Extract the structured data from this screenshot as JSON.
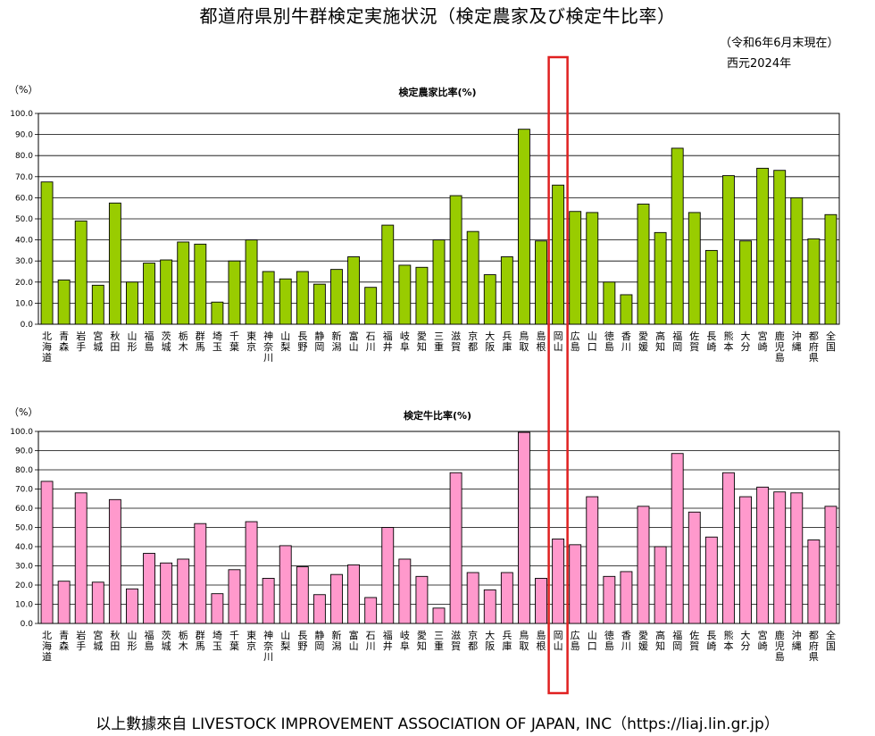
{
  "header": {
    "title": "都道府県別牛群検定実施状況（検定農家及び検定牛比率）",
    "date_note": "（令和6年6月末現在）",
    "year_note": "西元2024年"
  },
  "footer": {
    "source": "以上數據來自 LIVESTOCK IMPROVEMENT ASSOCIATION OF JAPAN, INC（https://liaj.lin.gr.jp）"
  },
  "colors": {
    "farm_bar": "#99cc00",
    "cow_bar": "#ff99cc",
    "bar_stroke": "#000000",
    "highlight_box": "#e02020"
  },
  "highlight": {
    "category_index": 30
  },
  "chart_data": [
    {
      "type": "bar",
      "title": "検定農家比率(%)",
      "unit_label": "（%）",
      "ylim": [
        0,
        100
      ],
      "yticks": [
        "0.0",
        "10.0",
        "20.0",
        "30.0",
        "40.0",
        "50.0",
        "60.0",
        "70.0",
        "80.0",
        "90.0",
        "100.0"
      ],
      "grid": true,
      "categories": [
        "北海道",
        "青森",
        "岩手",
        "宮城",
        "秋田",
        "山形",
        "福島",
        "茨城",
        "栃木",
        "群馬",
        "埼玉",
        "千葉",
        "東京",
        "神奈川",
        "山梨",
        "長野",
        "静岡",
        "新潟",
        "富山",
        "石川",
        "福井",
        "岐阜",
        "愛知",
        "三重",
        "滋賀",
        "京都",
        "大阪",
        "兵庫",
        "鳥取",
        "島根",
        "岡山",
        "広島",
        "山口",
        "徳島",
        "香川",
        "愛媛",
        "高知",
        "福岡",
        "佐賀",
        "長崎",
        "熊本",
        "大分",
        "宮崎",
        "鹿児島",
        "沖縄",
        "都府県",
        "全国"
      ],
      "category_lines": [
        [
          "北",
          "海",
          "道"
        ],
        [
          "青",
          "森"
        ],
        [
          "岩",
          "手"
        ],
        [
          "宮",
          "城"
        ],
        [
          "秋",
          "田"
        ],
        [
          "山",
          "形"
        ],
        [
          "福",
          "島"
        ],
        [
          "茨",
          "城"
        ],
        [
          "栃",
          "木"
        ],
        [
          "群",
          "馬"
        ],
        [
          "埼",
          "玉"
        ],
        [
          "千",
          "葉"
        ],
        [
          "東",
          "京"
        ],
        [
          "神",
          "奈",
          "川"
        ],
        [
          "山",
          "梨"
        ],
        [
          "長",
          "野"
        ],
        [
          "静",
          "岡"
        ],
        [
          "新",
          "潟"
        ],
        [
          "富",
          "山"
        ],
        [
          "石",
          "川"
        ],
        [
          "福",
          "井"
        ],
        [
          "岐",
          "阜"
        ],
        [
          "愛",
          "知"
        ],
        [
          "三",
          "重"
        ],
        [
          "滋",
          "賀"
        ],
        [
          "京",
          "都"
        ],
        [
          "大",
          "阪"
        ],
        [
          "兵",
          "庫"
        ],
        [
          "鳥",
          "取"
        ],
        [
          "島",
          "根"
        ],
        [
          "岡",
          "山"
        ],
        [
          "広",
          "島"
        ],
        [
          "山",
          "口"
        ],
        [
          "徳",
          "島"
        ],
        [
          "香",
          "川"
        ],
        [
          "愛",
          "媛"
        ],
        [
          "高",
          "知"
        ],
        [
          "福",
          "岡"
        ],
        [
          "佐",
          "賀"
        ],
        [
          "長",
          "崎"
        ],
        [
          "熊",
          "本"
        ],
        [
          "大",
          "分"
        ],
        [
          "宮",
          "崎"
        ],
        [
          "鹿",
          "児",
          "島"
        ],
        [
          "沖",
          "縄"
        ],
        [
          "都",
          "府",
          "県"
        ],
        [
          "全",
          "国"
        ]
      ],
      "values": [
        67.5,
        21.0,
        49.0,
        18.5,
        57.5,
        20.0,
        29.0,
        30.5,
        39.0,
        38.0,
        10.5,
        30.0,
        40.0,
        25.0,
        21.5,
        25.0,
        19.0,
        26.0,
        32.0,
        17.5,
        47.0,
        28.0,
        27.0,
        40.0,
        61.0,
        44.0,
        23.5,
        32.0,
        92.5,
        39.5,
        66.0,
        53.5,
        53.0,
        20.0,
        14.0,
        57.0,
        43.5,
        83.5,
        53.0,
        35.0,
        70.5,
        39.5,
        74.0,
        73.0,
        60.0,
        40.5,
        52.0
      ]
    },
    {
      "type": "bar",
      "title": "検定牛比率(%)",
      "unit_label": "（%）",
      "ylim": [
        0,
        100
      ],
      "yticks": [
        "0.0",
        "10.0",
        "20.0",
        "30.0",
        "40.0",
        "50.0",
        "60.0",
        "70.0",
        "80.0",
        "90.0",
        "100.0"
      ],
      "grid": true,
      "categories": [
        "北海道",
        "青森",
        "岩手",
        "宮城",
        "秋田",
        "山形",
        "福島",
        "茨城",
        "栃木",
        "群馬",
        "埼玉",
        "千葉",
        "東京",
        "神奈川",
        "山梨",
        "長野",
        "静岡",
        "新潟",
        "富山",
        "石川",
        "福井",
        "岐阜",
        "愛知",
        "三重",
        "滋賀",
        "京都",
        "大阪",
        "兵庫",
        "鳥取",
        "島根",
        "岡山",
        "広島",
        "山口",
        "徳島",
        "香川",
        "愛媛",
        "高知",
        "福岡",
        "佐賀",
        "長崎",
        "熊本",
        "大分",
        "宮崎",
        "鹿児島",
        "沖縄",
        "都府県",
        "全国"
      ],
      "category_lines": [
        [
          "北",
          "海",
          "道"
        ],
        [
          "青",
          "森"
        ],
        [
          "岩",
          "手"
        ],
        [
          "宮",
          "城"
        ],
        [
          "秋",
          "田"
        ],
        [
          "山",
          "形"
        ],
        [
          "福",
          "島"
        ],
        [
          "茨",
          "城"
        ],
        [
          "栃",
          "木"
        ],
        [
          "群",
          "馬"
        ],
        [
          "埼",
          "玉"
        ],
        [
          "千",
          "葉"
        ],
        [
          "東",
          "京"
        ],
        [
          "神",
          "奈",
          "川"
        ],
        [
          "山",
          "梨"
        ],
        [
          "長",
          "野"
        ],
        [
          "静",
          "岡"
        ],
        [
          "新",
          "潟"
        ],
        [
          "富",
          "山"
        ],
        [
          "石",
          "川"
        ],
        [
          "福",
          "井"
        ],
        [
          "岐",
          "阜"
        ],
        [
          "愛",
          "知"
        ],
        [
          "三",
          "重"
        ],
        [
          "滋",
          "賀"
        ],
        [
          "京",
          "都"
        ],
        [
          "大",
          "阪"
        ],
        [
          "兵",
          "庫"
        ],
        [
          "鳥",
          "取"
        ],
        [
          "島",
          "根"
        ],
        [
          "岡",
          "山"
        ],
        [
          "広",
          "島"
        ],
        [
          "山",
          "口"
        ],
        [
          "徳",
          "島"
        ],
        [
          "香",
          "川"
        ],
        [
          "愛",
          "媛"
        ],
        [
          "高",
          "知"
        ],
        [
          "福",
          "岡"
        ],
        [
          "佐",
          "賀"
        ],
        [
          "長",
          "崎"
        ],
        [
          "熊",
          "本"
        ],
        [
          "大",
          "分"
        ],
        [
          "宮",
          "崎"
        ],
        [
          "鹿",
          "児",
          "島"
        ],
        [
          "沖",
          "縄"
        ],
        [
          "都",
          "府",
          "県"
        ],
        [
          "全",
          "国"
        ]
      ],
      "values": [
        74.0,
        22.0,
        68.0,
        21.5,
        64.5,
        18.0,
        36.5,
        31.5,
        33.5,
        52.0,
        15.5,
        28.0,
        53.0,
        23.5,
        40.5,
        29.5,
        15.0,
        25.5,
        30.5,
        13.5,
        50.0,
        33.5,
        24.5,
        8.0,
        78.5,
        26.5,
        17.5,
        26.5,
        99.5,
        23.5,
        44.0,
        41.0,
        66.0,
        24.5,
        27.0,
        61.0,
        40.0,
        88.5,
        58.0,
        45.0,
        78.5,
        66.0,
        71.0,
        68.5,
        68.0,
        43.5,
        61.0
      ]
    }
  ]
}
